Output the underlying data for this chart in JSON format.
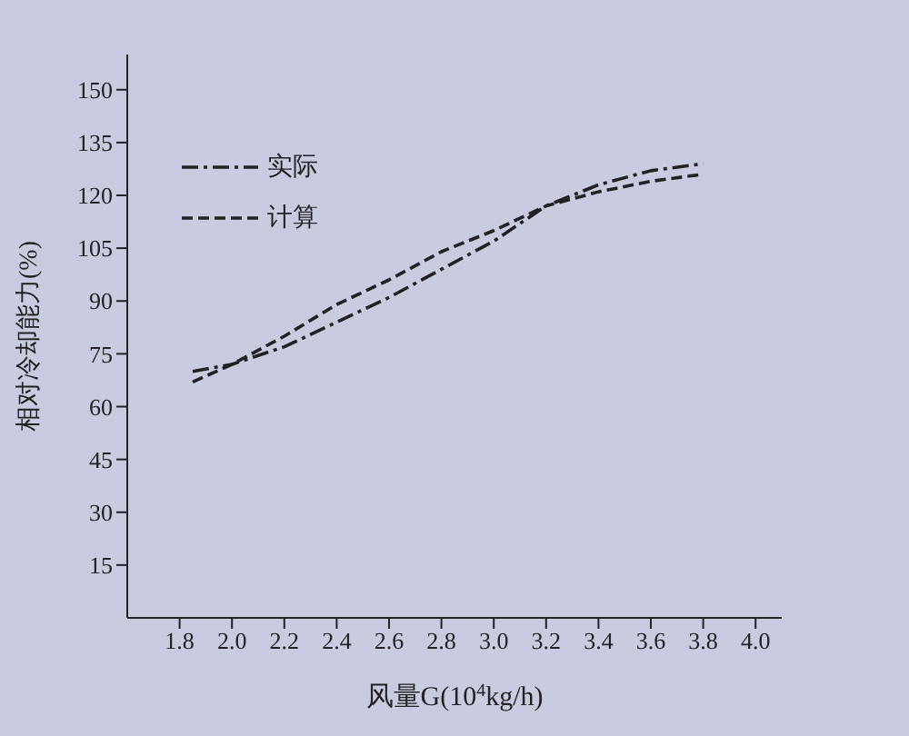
{
  "chart_data": {
    "type": "line",
    "xlabel": "风量G(10$^{4}$kg/h)",
    "ylabel": "相对冷却能力(%)",
    "xlim": [
      1.6,
      4.1
    ],
    "xticks": [
      1.8,
      {
        "value": 2,
        "label": "2.0"
      },
      2.2,
      2.4,
      2.6,
      2.8,
      {
        "value": 3,
        "label": "3.0"
      },
      3.2,
      3.4,
      3.6,
      3.8,
      {
        "value": 4,
        "label": "4.0"
      }
    ],
    "ylim": [
      0,
      160
    ],
    "yticks": [
      15,
      30,
      45,
      60,
      75,
      90,
      105,
      120,
      135,
      150
    ],
    "x": [
      1.85,
      2.0,
      2.2,
      2.4,
      2.6,
      2.8,
      3.0,
      3.2,
      3.4,
      3.6,
      3.8
    ],
    "series": [
      {
        "name": "实际",
        "color": "#222222",
        "line_style": "dashdot",
        "values": [
          70,
          72,
          77,
          84,
          91,
          99,
          107,
          117,
          123,
          127,
          129
        ]
      },
      {
        "name": "计算",
        "color": "#222222",
        "line_style": "dashed",
        "values": [
          67,
          72,
          80,
          89,
          96,
          104,
          110,
          117,
          121,
          124,
          126
        ]
      }
    ],
    "legend": "top left",
    "grid": false,
    "marker": "none"
  }
}
